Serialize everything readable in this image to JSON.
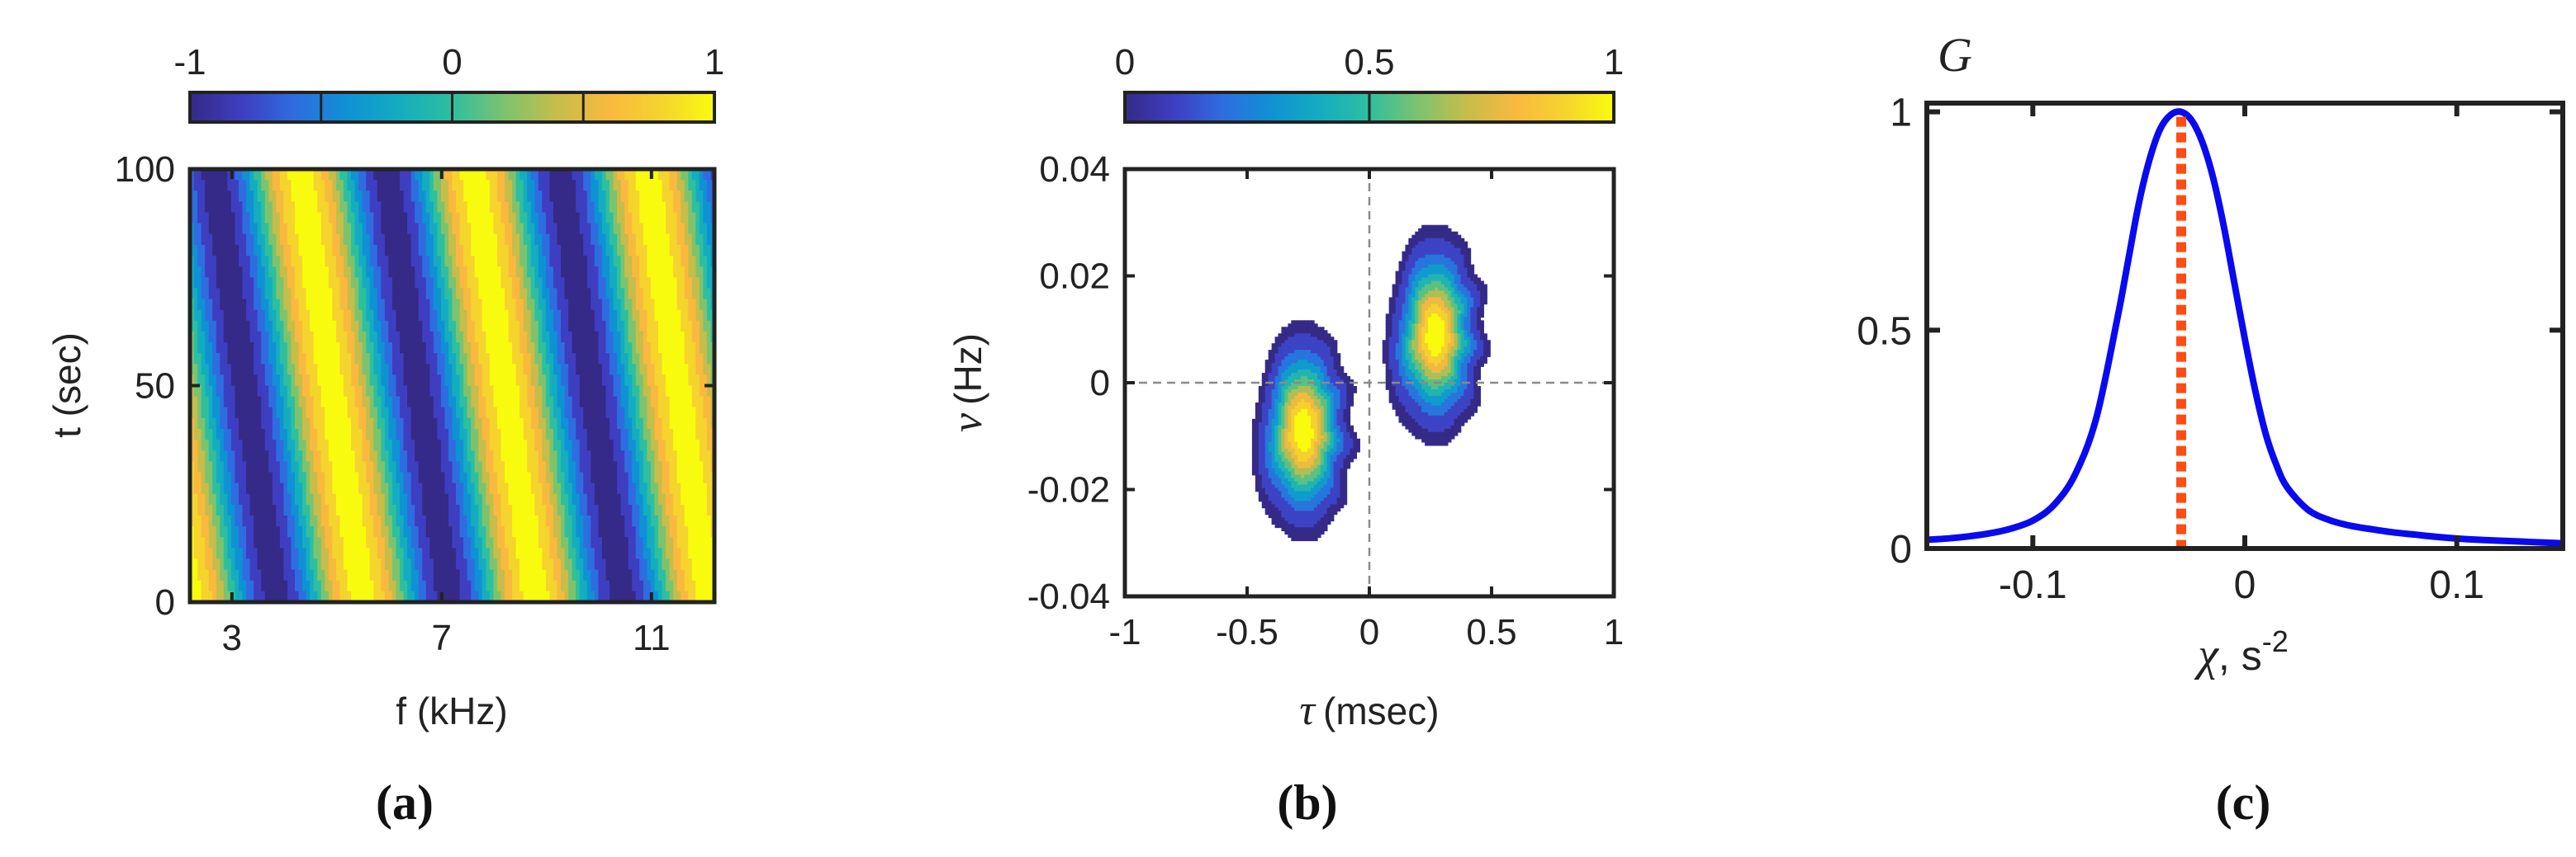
{
  "colors": {
    "parula": [
      "#352a87",
      "#3e3ec1",
      "#2e6de0",
      "#0f92d3",
      "#14adc0",
      "#2ebf9f",
      "#7dc36e",
      "#c6bd4a",
      "#f9b93f",
      "#f5d42d",
      "#f9fb0e"
    ],
    "axis": "#222222",
    "curve": "#0a0af0",
    "marker": "#ff4c12",
    "guide": "#9a9a9a"
  },
  "chart_data": [
    {
      "id": "a",
      "type": "heatmap",
      "caption": "(a)",
      "xlabel": "f (kHz)",
      "ylabel": "t (sec)",
      "xlim": [
        2.2,
        12.2
      ],
      "ylim": [
        0,
        100
      ],
      "xticks": [
        3,
        7,
        11
      ],
      "xtick_labels": [
        "3",
        "7",
        "11"
      ],
      "yticks": [
        0,
        50,
        100
      ],
      "ytick_labels": [
        "0",
        "50",
        "100"
      ],
      "function": "cos(2*pi*(f - 2.2 + 0.012*t)/3.3)",
      "colorbar": {
        "range": [
          -1,
          1
        ],
        "ticks": [
          -1,
          -0.5,
          0,
          0.5,
          1
        ],
        "tick_labels": [
          "-1",
          "0",
          "1"
        ],
        "tick_label_values": [
          -1,
          0,
          1
        ]
      }
    },
    {
      "id": "b",
      "type": "heatmap",
      "caption": "(b)",
      "xlabel_symbol": "τ",
      "xlabel": "(msec)",
      "ylabel_symbol": "ν",
      "ylabel": "(Hz)",
      "xlim": [
        -1,
        1
      ],
      "ylim": [
        -0.04,
        0.04
      ],
      "xticks": [
        -1,
        -0.5,
        0,
        0.5,
        1
      ],
      "xtick_labels": [
        "-1",
        "-0.5",
        "0",
        "0.5",
        "1"
      ],
      "yticks": [
        -0.04,
        -0.02,
        0,
        0.02,
        0.04
      ],
      "ytick_labels": [
        "-0.04",
        "-0.02",
        "0",
        "0.02",
        "0.04"
      ],
      "blobs": [
        {
          "tau": -0.27,
          "nu": -0.009,
          "tau_width": 0.085,
          "nu_width": 0.0085,
          "tilt": 2.4,
          "peak": 1.0
        },
        {
          "tau": 0.27,
          "nu": 0.009,
          "tau_width": 0.085,
          "nu_width": 0.0085,
          "tilt": 2.4,
          "peak": 1.0
        }
      ],
      "colorbar": {
        "range": [
          0,
          1
        ],
        "ticks": [
          0,
          0.5,
          1
        ],
        "tick_labels": [
          "0",
          "0.5",
          "1"
        ]
      }
    },
    {
      "id": "c",
      "type": "line",
      "caption": "(c)",
      "ylabel_symbol": "G",
      "xlabel_symbol": "χ",
      "xlabel": ", s",
      "xlabel_superscript": "-2",
      "xlim": [
        -0.15,
        0.15
      ],
      "ylim": [
        0,
        1.02
      ],
      "xticks": [
        -0.1,
        0,
        0.1
      ],
      "xtick_labels": [
        "-0.1",
        "0",
        "0.1"
      ],
      "yticks": [
        0,
        0.5,
        1
      ],
      "ytick_labels": [
        "0",
        "0.5",
        "1"
      ],
      "series": [
        {
          "name": "G(chi)",
          "x": [
            -0.15,
            -0.14,
            -0.13,
            -0.12,
            -0.11,
            -0.1,
            -0.09,
            -0.08,
            -0.07,
            -0.06,
            -0.055,
            -0.05,
            -0.045,
            -0.04,
            -0.035,
            -0.03,
            -0.025,
            -0.02,
            -0.015,
            -0.01,
            -0.005,
            0,
            0.005,
            0.01,
            0.015,
            0.02,
            0.03,
            0.04,
            0.05,
            0.06,
            0.07,
            0.08,
            0.09,
            0.1,
            0.11,
            0.12,
            0.13,
            0.14,
            0.15
          ],
          "y": [
            0.02,
            0.023,
            0.028,
            0.035,
            0.046,
            0.064,
            0.1,
            0.17,
            0.3,
            0.53,
            0.66,
            0.79,
            0.89,
            0.96,
            0.993,
            1.0,
            0.98,
            0.93,
            0.85,
            0.74,
            0.61,
            0.48,
            0.36,
            0.26,
            0.19,
            0.14,
            0.088,
            0.065,
            0.052,
            0.044,
            0.037,
            0.032,
            0.027,
            0.023,
            0.02,
            0.018,
            0.016,
            0.014,
            0.012
          ]
        }
      ],
      "marker_x": -0.03,
      "marker_style": "dotted vertical line"
    }
  ]
}
